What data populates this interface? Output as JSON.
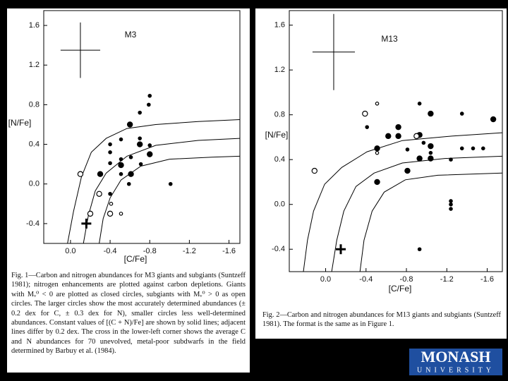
{
  "chart_data": [
    {
      "type": "scatter",
      "title": "M3",
      "xlabel": "[C/Fe]",
      "ylabel": "[N/Fe]",
      "color": "#000000",
      "xlim": [
        0.27,
        -1.71
      ],
      "ylim": [
        -0.6,
        1.75
      ],
      "xticks": [
        {
          "value": 0,
          "label": "0.0"
        },
        -0.4,
        -0.8,
        -1.2,
        -1.6
      ],
      "yticks": [
        -0.4,
        {
          "value": 0,
          "label": "0.0"
        },
        0.4,
        0.8,
        1.2,
        1.6
      ],
      "series": [
        {
          "marker": "filled",
          "size": "large",
          "x": [
            -0.3,
            -0.51,
            -0.6,
            -0.61,
            -0.7,
            -0.8
          ],
          "y": [
            0.1,
            0.19,
            0.6,
            0.1,
            0.4,
            0.3
          ]
        },
        {
          "marker": "filled",
          "size": "small",
          "x": [
            -0.4,
            -0.4,
            -0.4,
            -0.4,
            -0.51,
            -0.51,
            -0.51,
            -0.59,
            -0.61,
            -0.7,
            -0.7,
            -0.71,
            -0.79,
            -0.8,
            -0.8,
            -1.01
          ],
          "y": [
            0.21,
            0.32,
            0.4,
            -0.1,
            0.25,
            0.45,
            0.1,
            0.0,
            0.27,
            0.72,
            0.46,
            0.2,
            0.8,
            0.89,
            0.39,
            0.0
          ]
        },
        {
          "marker": "open",
          "size": "large",
          "x": [
            -0.1,
            -0.29,
            -0.2,
            -0.4
          ],
          "y": [
            0.1,
            -0.1,
            -0.3,
            -0.3
          ]
        },
        {
          "marker": "open",
          "size": "small",
          "x": [
            -0.41,
            -0.51
          ],
          "y": [
            -0.2,
            -0.3
          ]
        }
      ],
      "curves": [
        {
          "x": [
            0.03,
            -0.03,
            -0.11,
            -0.21,
            -0.36,
            -0.57,
            -0.86,
            -1.29,
            -1.71
          ],
          "y": [
            -0.6,
            -0.28,
            0.07,
            0.32,
            0.46,
            0.56,
            0.6,
            0.63,
            0.65
          ]
        },
        {
          "x": [
            -0.13,
            -0.18,
            -0.25,
            -0.36,
            -0.57,
            -0.86,
            -1.29,
            -1.71
          ],
          "y": [
            -0.6,
            -0.32,
            -0.07,
            0.11,
            0.28,
            0.39,
            0.44,
            0.46
          ]
        },
        {
          "x": [
            -0.29,
            -0.33,
            -0.4,
            -0.51,
            -0.71,
            -1.0,
            -1.43,
            -1.71
          ],
          "y": [
            -0.6,
            -0.35,
            -0.14,
            0.04,
            0.18,
            0.25,
            0.27,
            0.28
          ]
        }
      ],
      "error_cross": {
        "x": -0.1,
        "y": 1.35,
        "xerr": 0.2,
        "yerr": 0.28
      },
      "cross": {
        "x": -0.16,
        "y": -0.4
      }
    },
    {
      "type": "scatter",
      "title": "M13",
      "xlabel": "[C/Fe]",
      "ylabel": "[N/Fe]",
      "color": "#000000",
      "xlim": [
        0.36,
        -1.75
      ],
      "ylim": [
        -0.6,
        1.73
      ],
      "xticks": [
        {
          "value": 0,
          "label": "0.0"
        },
        -0.4,
        -0.8,
        -1.2,
        -1.6
      ],
      "yticks": [
        -0.4,
        {
          "value": 0,
          "label": "0.0"
        },
        0.4,
        0.8,
        1.2,
        1.6
      ],
      "series": [
        {
          "marker": "filled",
          "size": "large",
          "x": [
            -0.51,
            -0.62,
            -0.72,
            -0.72,
            -0.81,
            -0.93,
            -0.93,
            -1.04,
            -1.04,
            -1.04,
            -1.66,
            -0.51
          ],
          "y": [
            0.5,
            0.61,
            0.69,
            0.61,
            0.3,
            0.62,
            0.41,
            0.81,
            0.52,
            0.41,
            0.76,
            0.2
          ]
        },
        {
          "marker": "filled",
          "size": "small",
          "x": [
            -0.41,
            -0.81,
            -0.93,
            -0.93,
            -1.04,
            -0.97,
            -1.24,
            -1.24,
            -1.24,
            -1.24,
            -1.35,
            -1.35,
            -1.46,
            -1.56
          ],
          "y": [
            0.69,
            0.49,
            0.9,
            -0.4,
            0.46,
            0.55,
            0.4,
            0.03,
            0.0,
            -0.04,
            0.81,
            0.5,
            0.5,
            0.5
          ]
        },
        {
          "marker": "open",
          "size": "large",
          "x": [
            0.11,
            -0.39,
            -0.9
          ],
          "y": [
            0.3,
            0.81,
            0.61
          ]
        },
        {
          "marker": "open",
          "size": "small",
          "x": [
            -0.51,
            -0.51
          ],
          "y": [
            0.9,
            0.46
          ]
        }
      ],
      "curves": [
        {
          "x": [
            0.22,
            0.18,
            0.12,
            0.01,
            -0.16,
            -0.41,
            -0.76,
            -1.25,
            -1.75
          ],
          "y": [
            -0.6,
            -0.32,
            -0.06,
            0.18,
            0.33,
            0.47,
            0.57,
            0.61,
            0.64
          ]
        },
        {
          "x": [
            -0.06,
            -0.11,
            -0.18,
            -0.3,
            -0.48,
            -0.76,
            -1.18,
            -1.75
          ],
          "y": [
            -0.6,
            -0.32,
            -0.06,
            0.16,
            0.28,
            0.37,
            0.41,
            0.43
          ]
        },
        {
          "x": [
            -0.34,
            -0.38,
            -0.46,
            -0.58,
            -0.79,
            -1.11,
            -1.75
          ],
          "y": [
            -0.6,
            -0.32,
            -0.06,
            0.11,
            0.22,
            0.26,
            0.28
          ]
        }
      ],
      "error_cross": {
        "x": -0.08,
        "y": 1.36,
        "xerr": 0.21,
        "yerr": 0.34
      },
      "cross": {
        "x": -0.15,
        "y": -0.4
      }
    }
  ],
  "captions": [
    "Fig. 1—Carbon and nitrogen abundances for M3 giants and subgiants (Suntzeff 1981); nitrogen enhancements are plotted against carbon depletions. Giants with Mᵥ⁰ < 0 are plotted as closed circles, subgiants with Mᵥ⁰ > 0 as open circles. The larger circles show the most accurately determined abundances (± 0.2 dex for C, ± 0.3 dex for N), smaller circles less well-determined abundances. Constant values of [(C + N)/Fe] are shown by solid lines; adjacent lines differ by 0.2 dex. The cross in the lower-left corner shows the average C and N abundances for 70 unevolved, metal-poor subdwarfs in the field determined by Barbuy et al. (1984).",
    "Fig. 2—Carbon and nitrogen abundances for M13 giants and subgiants (Suntzeff 1981). The format is the same as in Figure 1."
  ],
  "logo": {
    "name": "MONASH",
    "subtitle": "UNIVERSITY"
  }
}
